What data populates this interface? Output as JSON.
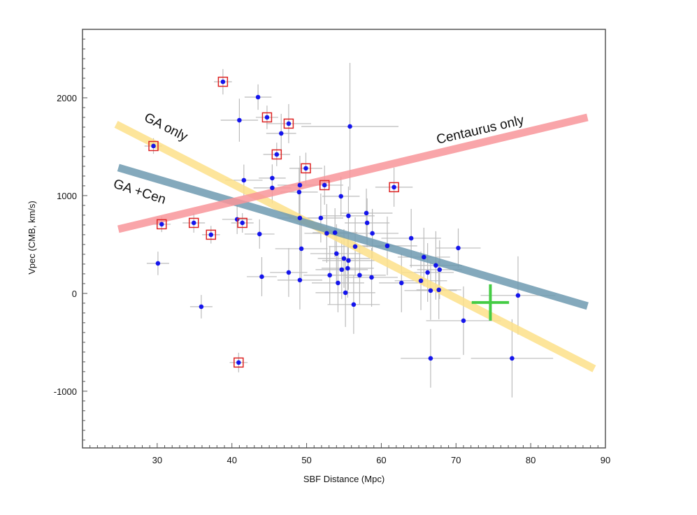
{
  "chart_data": {
    "type": "scatter",
    "title": "",
    "xlabel": "SBF Distance (Mpc)",
    "ylabel": "Vpec  (CMB, km/s)",
    "xlim": [
      20,
      90
    ],
    "ylim": [
      -1580,
      2700
    ],
    "xticks": [
      30,
      40,
      50,
      60,
      70,
      80,
      90
    ],
    "yticks": [
      -1000,
      0,
      1000,
      2000
    ],
    "grid": false,
    "point_color": "#0000ee",
    "box_color": "#dd2222",
    "errorbar_color": "#bbbbbb",
    "points": [
      {
        "x": 38.8,
        "y": 2164,
        "xerr": 1.2,
        "yerr": 130,
        "boxed": true
      },
      {
        "x": 43.5,
        "y": 2007,
        "xerr": 1.8,
        "yerr": 130,
        "boxed": false
      },
      {
        "x": 41.0,
        "y": 1771,
        "xerr": 2.5,
        "yerr": 220,
        "boxed": false
      },
      {
        "x": 44.7,
        "y": 1800,
        "xerr": 1.5,
        "yerr": 120,
        "boxed": true
      },
      {
        "x": 47.6,
        "y": 1736,
        "xerr": 3.0,
        "yerr": 200,
        "boxed": true
      },
      {
        "x": 46.6,
        "y": 1636,
        "xerr": 2.0,
        "yerr": 200,
        "boxed": false
      },
      {
        "x": 55.8,
        "y": 1707,
        "xerr": 6.5,
        "yerr": 650,
        "boxed": false
      },
      {
        "x": 29.5,
        "y": 1507,
        "xerr": 1.2,
        "yerr": 80,
        "boxed": true
      },
      {
        "x": 46.0,
        "y": 1421,
        "xerr": 1.8,
        "yerr": 120,
        "boxed": true
      },
      {
        "x": 49.9,
        "y": 1279,
        "xerr": 2.2,
        "yerr": 160,
        "boxed": true
      },
      {
        "x": 41.6,
        "y": 1157,
        "xerr": 2.5,
        "yerr": 160,
        "boxed": false
      },
      {
        "x": 45.4,
        "y": 1179,
        "xerr": 1.8,
        "yerr": 140,
        "boxed": false
      },
      {
        "x": 45.4,
        "y": 1079,
        "xerr": 2.5,
        "yerr": 160,
        "boxed": false
      },
      {
        "x": 52.4,
        "y": 1107,
        "xerr": 2.5,
        "yerr": 200,
        "boxed": true
      },
      {
        "x": 61.7,
        "y": 1086,
        "xerr": 2.5,
        "yerr": 200,
        "boxed": true
      },
      {
        "x": 49.1,
        "y": 1107,
        "xerr": 3.0,
        "yerr": 300,
        "boxed": false
      },
      {
        "x": 49.0,
        "y": 1036,
        "xerr": 2.5,
        "yerr": 250,
        "boxed": false
      },
      {
        "x": 54.6,
        "y": 993,
        "xerr": 2.5,
        "yerr": 200,
        "boxed": false
      },
      {
        "x": 30.6,
        "y": 707,
        "xerr": 1.2,
        "yerr": 80,
        "boxed": true
      },
      {
        "x": 34.9,
        "y": 721,
        "xerr": 1.5,
        "yerr": 100,
        "boxed": true
      },
      {
        "x": 37.2,
        "y": 600,
        "xerr": 1.2,
        "yerr": 90,
        "boxed": true
      },
      {
        "x": 40.7,
        "y": 757,
        "xerr": 2.0,
        "yerr": 150,
        "boxed": false
      },
      {
        "x": 41.4,
        "y": 721,
        "xerr": 1.5,
        "yerr": 100,
        "boxed": true
      },
      {
        "x": 43.7,
        "y": 607,
        "xerr": 2.0,
        "yerr": 150,
        "boxed": false
      },
      {
        "x": 49.1,
        "y": 771,
        "xerr": 3.0,
        "yerr": 300,
        "boxed": false
      },
      {
        "x": 51.9,
        "y": 771,
        "xerr": 3.0,
        "yerr": 250,
        "boxed": false
      },
      {
        "x": 55.6,
        "y": 793,
        "xerr": 3.5,
        "yerr": 300,
        "boxed": false
      },
      {
        "x": 58.0,
        "y": 821,
        "xerr": 3.5,
        "yerr": 250,
        "boxed": false
      },
      {
        "x": 58.1,
        "y": 721,
        "xerr": 3.0,
        "yerr": 250,
        "boxed": false
      },
      {
        "x": 58.8,
        "y": 614,
        "xerr": 3.5,
        "yerr": 250,
        "boxed": false
      },
      {
        "x": 53.8,
        "y": 621,
        "xerr": 3.0,
        "yerr": 250,
        "boxed": false
      },
      {
        "x": 52.7,
        "y": 614,
        "xerr": 3.0,
        "yerr": 300,
        "boxed": false
      },
      {
        "x": 49.3,
        "y": 457,
        "xerr": 3.5,
        "yerr": 300,
        "boxed": false
      },
      {
        "x": 56.5,
        "y": 479,
        "xerr": 3.5,
        "yerr": 300,
        "boxed": false
      },
      {
        "x": 60.8,
        "y": 486,
        "xerr": 4.0,
        "yerr": 300,
        "boxed": false
      },
      {
        "x": 64.0,
        "y": 564,
        "xerr": 4.0,
        "yerr": 300,
        "boxed": false
      },
      {
        "x": 70.3,
        "y": 464,
        "xerr": 3.0,
        "yerr": 200,
        "boxed": false
      },
      {
        "x": 30.1,
        "y": 307,
        "xerr": 1.5,
        "yerr": 120,
        "boxed": false
      },
      {
        "x": 54.0,
        "y": 407,
        "xerr": 3.5,
        "yerr": 300,
        "boxed": false
      },
      {
        "x": 55.0,
        "y": 357,
        "xerr": 3.5,
        "yerr": 300,
        "boxed": false
      },
      {
        "x": 55.6,
        "y": 336,
        "xerr": 3.5,
        "yerr": 300,
        "boxed": false
      },
      {
        "x": 55.5,
        "y": 257,
        "xerr": 3.5,
        "yerr": 300,
        "boxed": false
      },
      {
        "x": 54.7,
        "y": 243,
        "xerr": 3.5,
        "yerr": 300,
        "boxed": false
      },
      {
        "x": 65.7,
        "y": 371,
        "xerr": 3.5,
        "yerr": 300,
        "boxed": false
      },
      {
        "x": 67.3,
        "y": 286,
        "xerr": 3.5,
        "yerr": 350,
        "boxed": false
      },
      {
        "x": 67.8,
        "y": 243,
        "xerr": 3.0,
        "yerr": 300,
        "boxed": false
      },
      {
        "x": 66.2,
        "y": 214,
        "xerr": 3.5,
        "yerr": 300,
        "boxed": false
      },
      {
        "x": 47.6,
        "y": 214,
        "xerr": 2.5,
        "yerr": 250,
        "boxed": false
      },
      {
        "x": 44.0,
        "y": 171,
        "xerr": 2.0,
        "yerr": 200,
        "boxed": false
      },
      {
        "x": 53.1,
        "y": 186,
        "xerr": 3.5,
        "yerr": 300,
        "boxed": false
      },
      {
        "x": 57.1,
        "y": 186,
        "xerr": 3.5,
        "yerr": 300,
        "boxed": false
      },
      {
        "x": 58.7,
        "y": 164,
        "xerr": 3.5,
        "yerr": 300,
        "boxed": false
      },
      {
        "x": 49.1,
        "y": 136,
        "xerr": 3.0,
        "yerr": 300,
        "boxed": false
      },
      {
        "x": 54.2,
        "y": 107,
        "xerr": 3.5,
        "yerr": 300,
        "boxed": false
      },
      {
        "x": 62.7,
        "y": 107,
        "xerr": 3.0,
        "yerr": 300,
        "boxed": false
      },
      {
        "x": 65.3,
        "y": 129,
        "xerr": 3.5,
        "yerr": 300,
        "boxed": false
      },
      {
        "x": 66.6,
        "y": 29,
        "xerr": 3.5,
        "yerr": 300,
        "boxed": false
      },
      {
        "x": 67.7,
        "y": 36,
        "xerr": 3.0,
        "yerr": 300,
        "boxed": false
      },
      {
        "x": 55.2,
        "y": 7,
        "xerr": 4.0,
        "yerr": 350,
        "boxed": false
      },
      {
        "x": 56.3,
        "y": -114,
        "xerr": 3.5,
        "yerr": 300,
        "boxed": false
      },
      {
        "x": 35.9,
        "y": -136,
        "xerr": 1.5,
        "yerr": 120,
        "boxed": false
      },
      {
        "x": 78.3,
        "y": -21,
        "xerr": 5.0,
        "yerr": 400,
        "boxed": false
      },
      {
        "x": 71.0,
        "y": -279,
        "xerr": 5.0,
        "yerr": 350,
        "boxed": false
      },
      {
        "x": 66.6,
        "y": -664,
        "xerr": 4.0,
        "yerr": 300,
        "boxed": false
      },
      {
        "x": 77.5,
        "y": -664,
        "xerr": 5.5,
        "yerr": 400,
        "boxed": false
      },
      {
        "x": 40.9,
        "y": -707,
        "xerr": 1.2,
        "yerr": 100,
        "boxed": true
      }
    ],
    "model_lines": [
      {
        "label": "GA only",
        "color": "#fde08a",
        "x": [
          24.5,
          88.5
        ],
        "y": [
          1729,
          -771
        ]
      },
      {
        "label": "GA +Cen",
        "color": "#6f9ab0",
        "x": [
          24.8,
          87.6
        ],
        "y": [
          1286,
          -129
        ]
      },
      {
        "label": "Centaurus only",
        "color": "#f8959a",
        "x": [
          24.8,
          87.6
        ],
        "y": [
          657,
          1800
        ]
      }
    ],
    "marker": {
      "color": "#44cc44",
      "x": 74.6,
      "y": -93,
      "xerr": 2.5,
      "yerr": 186
    }
  }
}
